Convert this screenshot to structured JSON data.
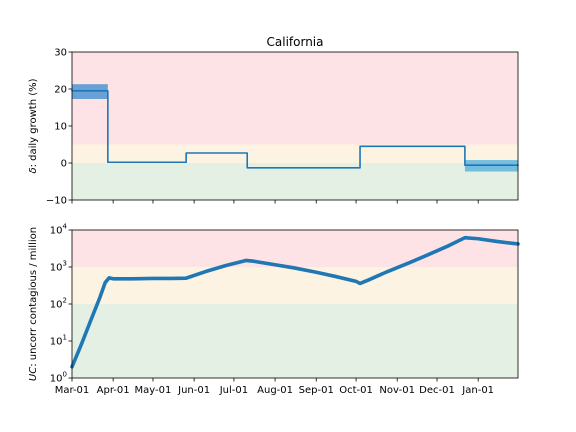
{
  "chart_data": [
    {
      "type": "line",
      "title": "California",
      "xlabel": "",
      "ylabel": "δ: daily growth (%)",
      "ylabel_prefix": "δ",
      "ylabel_rest": ": daily growth (%)",
      "ylim": [
        -10,
        30
      ],
      "yticks": [
        -10,
        0,
        10,
        20,
        30
      ],
      "ytick_labels": [
        "−10",
        "0",
        "10",
        "20",
        "30"
      ],
      "xticks": [
        "Mar-01",
        "Apr-01",
        "May-01",
        "Jun-01",
        "Jul-01",
        "Aug-01",
        "Sep-01",
        "Oct-01",
        "Nov-01",
        "Dec-01",
        "Jan-01"
      ],
      "show_xtick_labels": false,
      "zones": [
        {
          "from": 5,
          "to": 30,
          "color": "#fde3e5"
        },
        {
          "from": 0,
          "to": 5,
          "color": "#fdf3e3"
        },
        {
          "from": -10,
          "to": 0,
          "color": "#e4f0e3"
        }
      ],
      "series": [
        {
          "color": "#1f77b4",
          "step": true,
          "x": [
            "2020-03-01",
            "2020-03-28",
            "2020-03-28",
            "2020-05-26",
            "2020-05-26",
            "2020-07-11",
            "2020-07-11",
            "2020-10-04",
            "2020-10-04",
            "2020-12-22",
            "2020-12-22",
            "2021-01-31"
          ],
          "y": [
            19.5,
            19.5,
            0.2,
            0.2,
            2.7,
            2.7,
            -1.3,
            -1.3,
            4.5,
            4.5,
            -0.6,
            -0.6
          ]
        }
      ],
      "bands": [
        {
          "x_from": "2020-03-01",
          "x_to": "2020-03-28",
          "low": 17.3,
          "high": 21.3,
          "color": "#4f94d4"
        },
        {
          "x_from": "2020-12-22",
          "x_to": "2021-01-31",
          "low": -2.3,
          "high": 0.8,
          "color": "#5fb4dd"
        }
      ]
    },
    {
      "type": "line",
      "title": "",
      "xlabel": "",
      "ylabel": "UC: uncorr contagious / million",
      "ylabel_prefix": "UC",
      "ylabel_rest": ": uncorr contagious / million",
      "yscale": "log",
      "ylim": [
        1,
        10000
      ],
      "yticks": [
        1,
        10,
        100,
        1000,
        10000
      ],
      "ytick_exponents": [
        "0",
        "1",
        "2",
        "3",
        "4"
      ],
      "ytick_base": "10",
      "xticks": [
        "Mar-01",
        "Apr-01",
        "May-01",
        "Jun-01",
        "Jul-01",
        "Aug-01",
        "Sep-01",
        "Oct-01",
        "Nov-01",
        "Dec-01",
        "Jan-01"
      ],
      "show_xtick_labels": true,
      "zones": [
        {
          "from": 1000,
          "to": 10000,
          "color": "#fde3e5"
        },
        {
          "from": 100,
          "to": 1000,
          "color": "#fdf3e3"
        },
        {
          "from": 1,
          "to": 100,
          "color": "#e4f0e3"
        }
      ],
      "series": [
        {
          "color": "#1f77b4",
          "step": false,
          "x": [
            "2020-03-01",
            "2020-03-08",
            "2020-03-15",
            "2020-03-22",
            "2020-03-26",
            "2020-03-29",
            "2020-04-01",
            "2020-04-15",
            "2020-05-01",
            "2020-05-15",
            "2020-05-26",
            "2020-06-10",
            "2020-06-25",
            "2020-07-10",
            "2020-07-15",
            "2020-08-01",
            "2020-08-15",
            "2020-09-01",
            "2020-09-15",
            "2020-10-01",
            "2020-10-04",
            "2020-10-10",
            "2020-10-25",
            "2020-11-10",
            "2020-11-25",
            "2020-12-10",
            "2020-12-22",
            "2021-01-01",
            "2021-01-15",
            "2021-01-31"
          ],
          "y": [
            2,
            8,
            35,
            150,
            380,
            510,
            480,
            480,
            490,
            490,
            500,
            760,
            1100,
            1500,
            1450,
            1150,
            950,
            720,
            560,
            410,
            360,
            440,
            760,
            1300,
            2200,
            3800,
            6200,
            5800,
            4900,
            4200
          ]
        }
      ]
    }
  ]
}
